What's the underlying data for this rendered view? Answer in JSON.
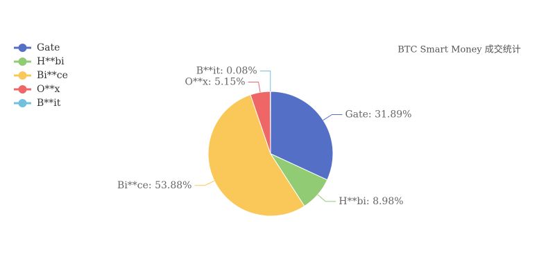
{
  "chart_data": {
    "type": "pie",
    "title": "BTC Smart Money 成交统计",
    "categories": [
      "Gate",
      "H**bi",
      "Bi**ce",
      "O**x",
      "B**it"
    ],
    "values": [
      31.89,
      8.98,
      53.88,
      5.15,
      0.08
    ],
    "value_labels": [
      "Gate: 31.89%",
      "H**bi: 8.98%",
      "Bi**ce: 53.88%",
      "O**x: 5.15%",
      "B**it: 0.08%"
    ],
    "colors": [
      "#5470c6",
      "#91cc75",
      "#fac858",
      "#ee6666",
      "#73c0de"
    ],
    "legend": "top-left"
  }
}
